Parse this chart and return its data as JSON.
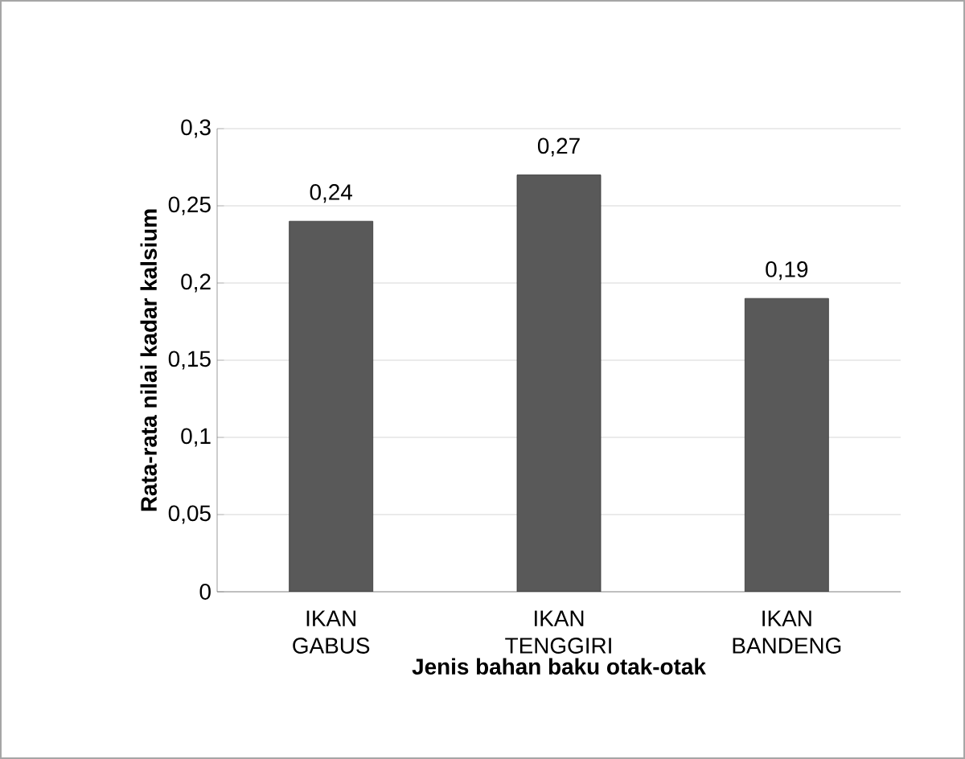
{
  "chart_data": {
    "type": "bar",
    "xlabel": "Jenis bahan baku otak-otak",
    "ylabel": "Rata-rata nilai kadar kalsium",
    "categories": [
      "IKAN GABUS",
      "IKAN TENGGIRI",
      "IKAN BANDENG"
    ],
    "values": [
      0.24,
      0.27,
      0.19
    ],
    "value_labels": [
      "0,24",
      "0,27",
      "0,19"
    ],
    "color": "#595959",
    "ylim": [
      0,
      0.3
    ],
    "yticks": [
      0,
      {
        "value": 0.05,
        "label": "0,05"
      },
      {
        "value": 0.1,
        "label": "0,1"
      },
      {
        "value": 0.15,
        "label": "0,15"
      },
      {
        "value": 0.2,
        "label": "0,2"
      },
      {
        "value": 0.25,
        "label": "0,25"
      },
      {
        "value": 0.3,
        "label": "0,3"
      }
    ],
    "grid": "y"
  }
}
